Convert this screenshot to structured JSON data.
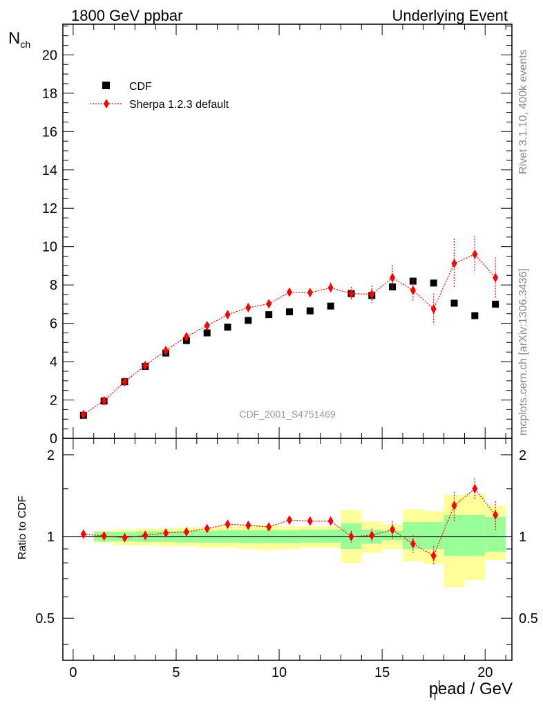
{
  "header": {
    "left": "1800 GeV ppbar",
    "right": "Underlying Event"
  },
  "side": {
    "rivet": "Rivet 3.1.10,  400k events",
    "mcplots": "mcplots.cern.ch [arXiv:1306.3436]"
  },
  "benchmark": "CDF_2001_S4751469",
  "colors": {
    "data": "#000000",
    "mc": "#ff0000",
    "band_inner": "#99ff99",
    "band_outer": "#ffff99"
  },
  "chart_data": [
    {
      "type": "scatter",
      "ylabel": "N_ch",
      "xlim": [
        -0.5,
        21.3
      ],
      "ylim": [
        0,
        21.6
      ],
      "yticks": [
        0,
        2,
        4,
        6,
        8,
        10,
        12,
        14,
        16,
        18,
        20
      ],
      "legend": {
        "placement": "top-left",
        "entries": [
          "CDF",
          "Sherpa 1.2.3 default"
        ]
      },
      "series": [
        {
          "name": "CDF",
          "marker": "square",
          "x": [
            0.5,
            1.5,
            2.5,
            3.5,
            4.5,
            5.5,
            6.5,
            7.5,
            8.5,
            9.5,
            10.5,
            11.5,
            12.5,
            13.5,
            14.5,
            15.5,
            16.5,
            17.5,
            18.5,
            19.5,
            20.5
          ],
          "y": [
            1.2,
            1.95,
            2.95,
            3.75,
            4.45,
            5.1,
            5.5,
            5.8,
            6.15,
            6.45,
            6.6,
            6.65,
            6.9,
            7.55,
            7.45,
            7.9,
            8.2,
            8.1,
            7.05,
            6.4,
            7.0
          ]
        },
        {
          "name": "Sherpa 1.2.3 default",
          "marker": "diamond",
          "x": [
            0.5,
            1.5,
            2.5,
            3.5,
            4.5,
            5.5,
            6.5,
            7.5,
            8.5,
            9.5,
            10.5,
            11.5,
            12.5,
            13.5,
            14.5,
            15.5,
            16.5,
            17.5,
            18.5,
            19.5,
            20.5
          ],
          "y": [
            1.24,
            1.96,
            2.95,
            3.8,
            4.58,
            5.3,
            5.88,
            6.45,
            6.82,
            7.02,
            7.62,
            7.6,
            7.85,
            7.55,
            7.52,
            8.38,
            7.72,
            6.75,
            9.12,
            9.6,
            8.38
          ],
          "yerr": [
            0.02,
            0.03,
            0.04,
            0.05,
            0.06,
            0.07,
            0.09,
            0.1,
            0.12,
            0.14,
            0.18,
            0.22,
            0.28,
            0.35,
            0.45,
            0.65,
            0.55,
            0.8,
            1.3,
            0.95,
            1.05
          ]
        }
      ]
    },
    {
      "type": "scatter",
      "xlabel": "p_T^lead / GeV",
      "ylabel": "Ratio to CDF",
      "xlim": [
        -0.5,
        21.3
      ],
      "ylim": [
        0.35,
        2.3
      ],
      "yscale": "log",
      "yticks": [
        0.5,
        1,
        2
      ],
      "xticks": [
        0,
        5,
        10,
        15,
        20
      ],
      "reference_line": 1,
      "bands": {
        "x_edges": [
          0,
          1,
          2,
          3,
          4,
          5,
          6,
          7,
          8,
          9,
          10,
          11,
          12,
          13,
          14,
          15,
          16,
          17,
          18,
          19,
          20,
          21
        ],
        "inner_low": [
          1.0,
          0.96,
          0.96,
          0.955,
          0.955,
          0.95,
          0.95,
          0.95,
          0.945,
          0.945,
          0.945,
          0.95,
          0.95,
          0.9,
          0.94,
          0.97,
          0.9,
          0.9,
          0.85,
          0.85,
          0.88
        ],
        "inner_high": [
          1.0,
          1.04,
          1.04,
          1.045,
          1.045,
          1.05,
          1.05,
          1.055,
          1.055,
          1.055,
          1.055,
          1.06,
          1.06,
          1.12,
          1.06,
          1.05,
          1.13,
          1.13,
          1.2,
          1.2,
          1.18
        ],
        "outer_low": [
          1.0,
          0.95,
          0.93,
          0.93,
          0.92,
          0.92,
          0.91,
          0.91,
          0.9,
          0.89,
          0.9,
          0.91,
          0.91,
          0.8,
          0.87,
          0.9,
          0.81,
          0.79,
          0.65,
          0.69,
          0.82
        ],
        "outer_high": [
          1.0,
          1.05,
          1.06,
          1.07,
          1.07,
          1.08,
          1.08,
          1.09,
          1.1,
          1.1,
          1.09,
          1.09,
          1.09,
          1.25,
          1.14,
          1.11,
          1.26,
          1.24,
          1.42,
          1.43,
          1.3
        ]
      },
      "series": [
        {
          "name": "Sherpa 1.2.3 default",
          "marker": "diamond",
          "x": [
            0.5,
            1.5,
            2.5,
            3.5,
            4.5,
            5.5,
            6.5,
            7.5,
            8.5,
            9.5,
            10.5,
            11.5,
            12.5,
            13.5,
            14.5,
            15.5,
            16.5,
            17.5,
            18.5,
            19.5,
            20.5
          ],
          "y": [
            1.02,
            1.005,
            0.99,
            1.01,
            1.03,
            1.04,
            1.07,
            1.11,
            1.1,
            1.085,
            1.15,
            1.14,
            1.14,
            1.0,
            1.01,
            1.06,
            0.94,
            0.85,
            1.3,
            1.5,
            1.2
          ],
          "yerr": [
            0.01,
            0.015,
            0.015,
            0.015,
            0.015,
            0.02,
            0.02,
            0.02,
            0.02,
            0.025,
            0.03,
            0.035,
            0.04,
            0.05,
            0.06,
            0.08,
            0.07,
            0.07,
            0.16,
            0.14,
            0.15
          ]
        }
      ]
    }
  ]
}
